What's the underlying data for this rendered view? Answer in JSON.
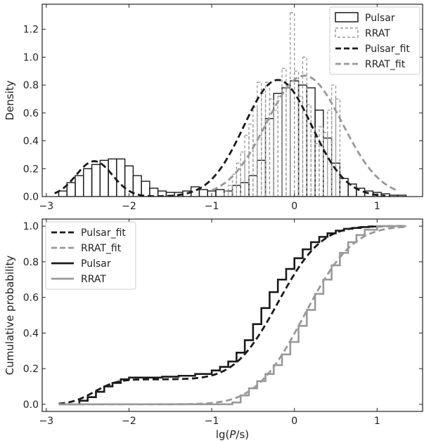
{
  "colors": {
    "pulsar": "#1a1a1a",
    "rrat": "#999999"
  },
  "chart_data": [
    {
      "type": "bar",
      "ylabel": "Density",
      "xlim": [
        -3.05,
        1.55
      ],
      "ylim": [
        0,
        1.38
      ],
      "xticks": [
        -3,
        -2,
        -1,
        0,
        1
      ],
      "yticks": [
        0.0,
        0.2,
        0.4,
        0.6,
        0.8,
        1.0,
        1.2
      ],
      "legend": {
        "position": "top-right",
        "entries": [
          {
            "label": "Pulsar",
            "kind": "box-solid",
            "color": "#1a1a1a"
          },
          {
            "label": "RRAT",
            "kind": "box-dashed",
            "color": "#999999"
          },
          {
            "label": "Pulsar_fit",
            "kind": "line-dashed",
            "color": "#1a1a1a"
          },
          {
            "label": "RRAT_fit",
            "kind": "line-dashed",
            "color": "#999999"
          }
        ]
      },
      "series": [
        {
          "name": "Pulsar",
          "style": "histogram",
          "bin_start": -2.85,
          "bin_width": 0.1,
          "values": [
            0.04,
            0.1,
            0.15,
            0.2,
            0.23,
            0.26,
            0.27,
            0.27,
            0.22,
            0.15,
            0.11,
            0.06,
            0.04,
            0.03,
            0.03,
            0.04,
            0.07,
            0.05,
            0.04,
            0.05,
            0.04,
            0.08,
            0.1,
            0.15,
            0.26,
            0.56,
            0.74,
            0.78,
            0.83,
            0.8,
            0.78,
            0.62,
            0.42,
            0.24,
            0.13,
            0.09,
            0.06,
            0.04,
            0.03,
            0.02,
            0.01,
            0.01
          ]
        },
        {
          "name": "RRAT",
          "style": "histogram",
          "bin_start": -0.85,
          "bin_width": 0.05,
          "values": [
            0.04,
            0.08,
            0.16,
            0.24,
            0.32,
            0.44,
            0.52,
            0.64,
            0.82,
            0.74,
            0.82,
            0.7,
            0.62,
            0.72,
            0.92,
            0.78,
            1.32,
            0.9,
            0.72,
            1.0,
            0.66,
            0.5,
            0.38,
            0.5,
            0.46,
            0.62,
            0.8,
            0.7
          ]
        },
        {
          "name": "Pulsar_fit",
          "style": "dashed-curve",
          "components": [
            {
              "weight": 0.14,
              "mean": -2.42,
              "sd": 0.22
            },
            {
              "weight": 0.86,
              "mean": -0.2,
              "sd": 0.41
            }
          ],
          "x_range": [
            -2.9,
            1.1
          ]
        },
        {
          "name": "RRAT_fit",
          "style": "dashed-curve",
          "components": [
            {
              "weight": 1.0,
              "mean": 0.12,
              "sd": 0.46
            }
          ],
          "x_range": [
            -1.0,
            1.25
          ]
        }
      ]
    },
    {
      "type": "line",
      "xlabel": "lg(P/s)",
      "ylabel": "Cumulative probability",
      "xlim": [
        -3.05,
        1.55
      ],
      "ylim": [
        -0.04,
        1.04
      ],
      "xticks": [
        -3,
        -2,
        -1,
        0,
        1
      ],
      "yticks": [
        0.0,
        0.2,
        0.4,
        0.6,
        0.8,
        1.0
      ],
      "legend": {
        "position": "top-left",
        "entries": [
          {
            "label": "Pulsar_fit",
            "kind": "line-dashed",
            "color": "#1a1a1a"
          },
          {
            "label": "RRAT_fit",
            "kind": "line-dashed",
            "color": "#999999"
          },
          {
            "label": "Pulsar",
            "kind": "line-solid",
            "color": "#1a1a1a"
          },
          {
            "label": "RRAT",
            "kind": "line-solid",
            "color": "#999999"
          }
        ]
      },
      "series": [
        {
          "name": "Pulsar_fit",
          "style": "dashed-cdf",
          "components": [
            {
              "weight": 0.14,
              "mean": -2.42,
              "sd": 0.22
            },
            {
              "weight": 0.86,
              "mean": -0.2,
              "sd": 0.41
            }
          ],
          "x_range": [
            -2.85,
            1.35
          ]
        },
        {
          "name": "RRAT_fit",
          "style": "dashed-cdf",
          "components": [
            {
              "weight": 1.0,
              "mean": 0.12,
              "sd": 0.46
            }
          ],
          "x_range": [
            -2.85,
            1.35
          ]
        },
        {
          "name": "Pulsar",
          "style": "step",
          "x": [
            -2.85,
            -2.6,
            -2.5,
            -2.4,
            -2.3,
            -2.2,
            -2.1,
            -2.0,
            -1.8,
            -1.6,
            -1.4,
            -1.2,
            -1.0,
            -0.9,
            -0.8,
            -0.7,
            -0.6,
            -0.5,
            -0.4,
            -0.3,
            -0.2,
            -0.1,
            0.0,
            0.1,
            0.2,
            0.3,
            0.4,
            0.5,
            0.6,
            0.7,
            0.8,
            0.9,
            1.0,
            1.1,
            1.35
          ],
          "y": [
            0.0,
            0.02,
            0.04,
            0.07,
            0.1,
            0.12,
            0.14,
            0.15,
            0.15,
            0.155,
            0.16,
            0.17,
            0.19,
            0.21,
            0.24,
            0.29,
            0.36,
            0.45,
            0.54,
            0.63,
            0.7,
            0.76,
            0.82,
            0.87,
            0.91,
            0.94,
            0.96,
            0.975,
            0.985,
            0.99,
            0.995,
            0.998,
            1.0,
            1.0,
            1.0
          ]
        },
        {
          "name": "RRAT",
          "style": "step",
          "x": [
            -2.85,
            -0.85,
            -0.75,
            -0.65,
            -0.55,
            -0.45,
            -0.35,
            -0.25,
            -0.15,
            -0.05,
            0.05,
            0.15,
            0.25,
            0.35,
            0.45,
            0.55,
            0.65,
            0.75,
            0.85,
            1.0,
            1.35
          ],
          "y": [
            0.0,
            0.0,
            0.01,
            0.05,
            0.09,
            0.13,
            0.17,
            0.22,
            0.28,
            0.35,
            0.44,
            0.53,
            0.62,
            0.7,
            0.78,
            0.85,
            0.91,
            0.95,
            0.98,
            1.0,
            1.0
          ]
        }
      ]
    }
  ]
}
